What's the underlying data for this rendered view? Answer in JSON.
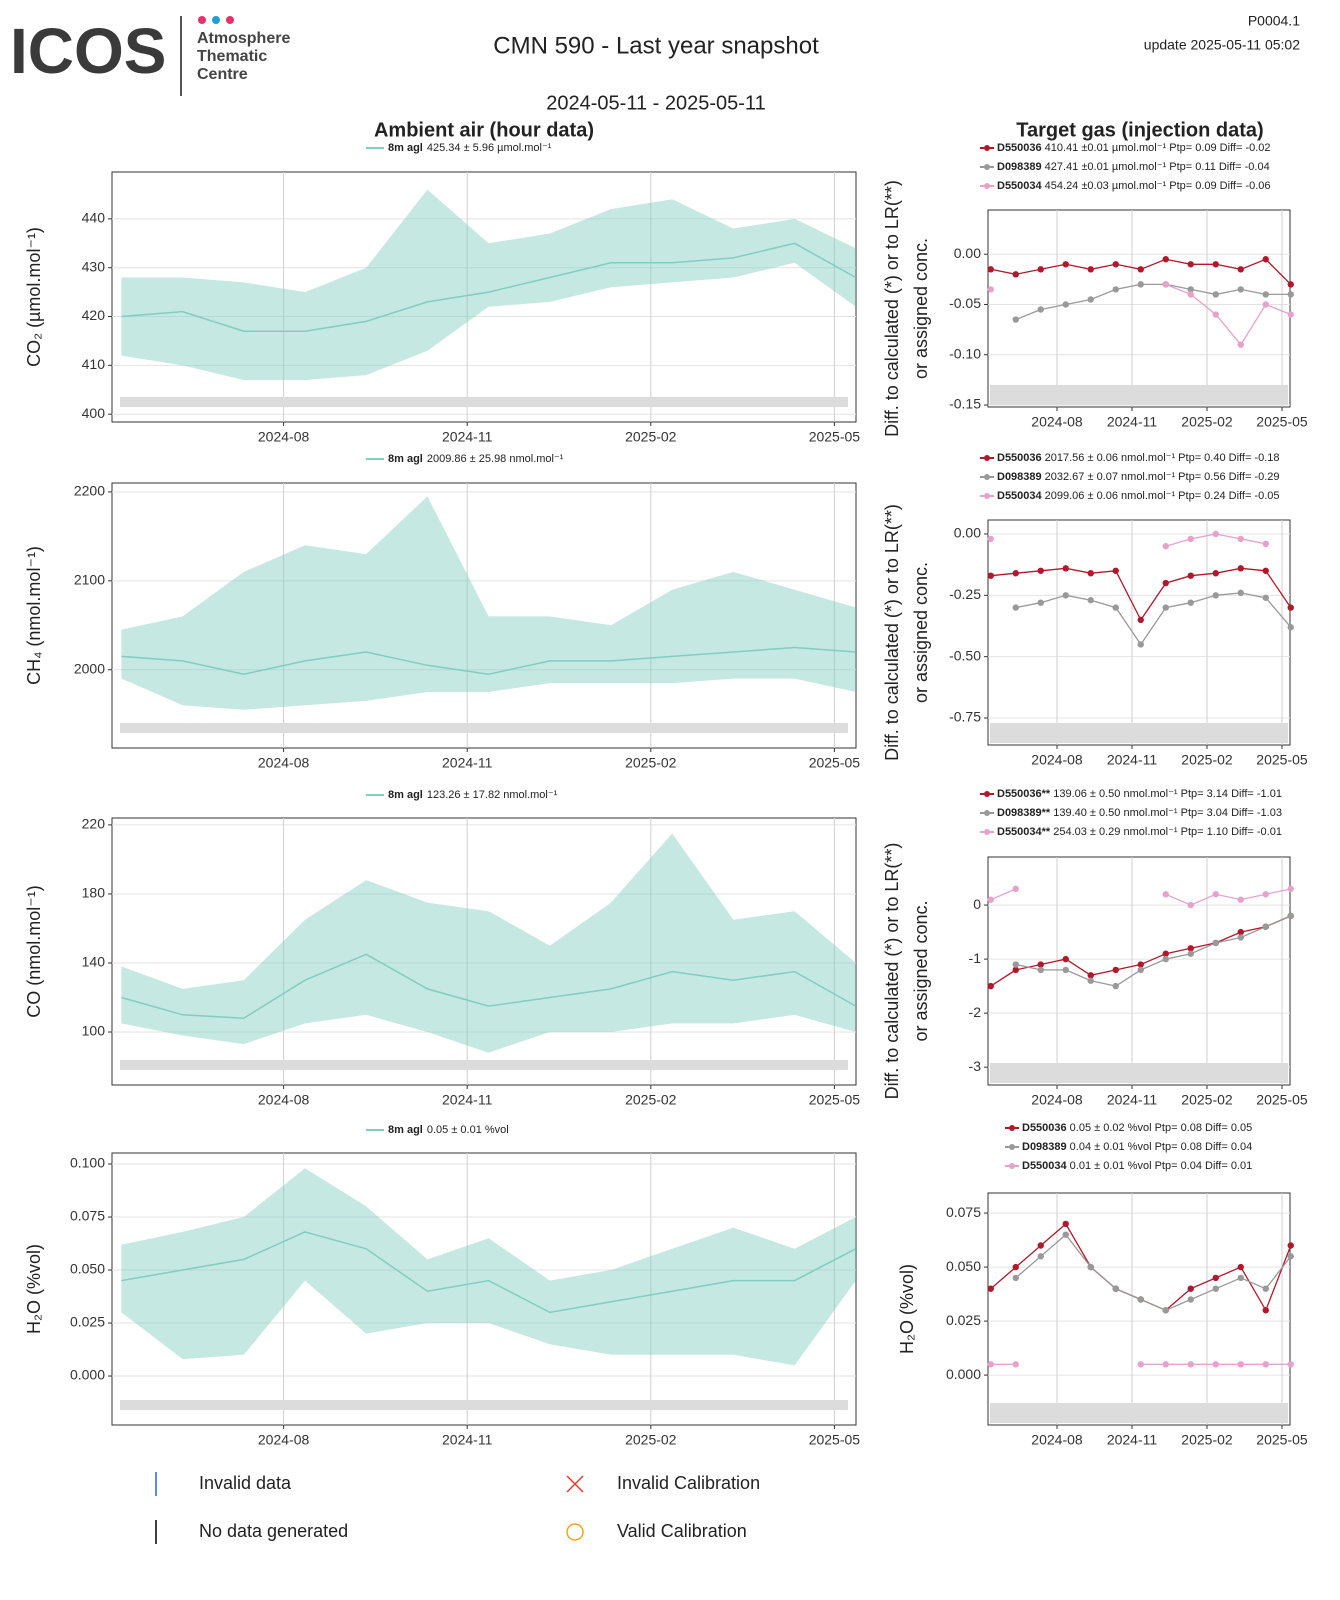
{
  "header": {
    "logo": "ICOS",
    "logo_lines": [
      "Atmosphere",
      "Thematic",
      "Centre"
    ],
    "title": "CMN 590 - Last year snapshot",
    "period": "2024-05-11 - 2025-05-11",
    "code": "P0004.1",
    "update": "update  2025-05-11 05:02",
    "left_heading": "Ambient air (hour data)",
    "right_heading": "Target gas (injection data)"
  },
  "legend_keys": [
    "Invalid data",
    "No data generated",
    "Invalid Calibration",
    "Valid Calibration"
  ],
  "chart_data": [
    {
      "type": "band-line",
      "ylabel": "CO₂ (µmol.mol⁻¹)",
      "x": [
        "2024-05",
        "2024-06",
        "2024-07",
        "2024-08",
        "2024-09",
        "2024-10",
        "2024-11",
        "2024-12",
        "2025-01",
        "2025-02",
        "2025-03",
        "2025-04",
        "2025-05"
      ],
      "xticks": [
        "2024-08",
        "2024-11",
        "2025-02",
        "2025-05"
      ],
      "ylim": [
        398.4,
        449.6
      ],
      "yticks": [
        400,
        410,
        420,
        430,
        440
      ],
      "grid": true,
      "series": [
        {
          "name": "8m agl",
          "stats": "425.34 ± 5.96 µmol.mol⁻¹",
          "color": "#80cdc1",
          "values": [
            420,
            421,
            417,
            417,
            419,
            423,
            425,
            428,
            431,
            431,
            432,
            435,
            428
          ],
          "low": [
            412,
            410,
            407,
            407,
            408,
            413,
            422,
            423,
            426,
            427,
            428,
            431,
            422
          ],
          "high": [
            428,
            428,
            427,
            425,
            430,
            446,
            435,
            437,
            442,
            444,
            438,
            440,
            434
          ]
        }
      ]
    },
    {
      "type": "band-line",
      "ylabel": "CH₄ (nmol.mol⁻¹)",
      "x": [
        "2024-05",
        "2024-06",
        "2024-07",
        "2024-08",
        "2024-09",
        "2024-10",
        "2024-11",
        "2024-12",
        "2025-01",
        "2025-02",
        "2025-03",
        "2025-04",
        "2025-05"
      ],
      "xticks": [
        "2024-08",
        "2024-11",
        "2025-02",
        "2025-05"
      ],
      "ylim": [
        1912,
        2210
      ],
      "yticks": [
        2000,
        2100,
        2200
      ],
      "grid": true,
      "series": [
        {
          "name": "8m agl",
          "stats": "2009.86 ± 25.98 nmol.mol⁻¹",
          "color": "#80cdc1",
          "values": [
            2015,
            2010,
            1995,
            2010,
            2020,
            2005,
            1995,
            2010,
            2010,
            2015,
            2020,
            2025,
            2020
          ],
          "low": [
            1990,
            1960,
            1955,
            1960,
            1965,
            1975,
            1975,
            1985,
            1985,
            1985,
            1990,
            1990,
            1975
          ],
          "high": [
            2045,
            2060,
            2110,
            2140,
            2130,
            2195,
            2060,
            2060,
            2050,
            2090,
            2110,
            2090,
            2070
          ]
        }
      ]
    },
    {
      "type": "band-line",
      "ylabel": "CO (nmol.mol⁻¹)",
      "x": [
        "2024-05",
        "2024-06",
        "2024-07",
        "2024-08",
        "2024-09",
        "2024-10",
        "2024-11",
        "2024-12",
        "2025-01",
        "2025-02",
        "2025-03",
        "2025-04",
        "2025-05"
      ],
      "xticks": [
        "2024-08",
        "2024-11",
        "2025-02",
        "2025-05"
      ],
      "ylim": [
        69.3,
        224
      ],
      "yticks": [
        100,
        140,
        180,
        220
      ],
      "grid": true,
      "series": [
        {
          "name": "8m agl",
          "stats": "123.26 ± 17.82 nmol.mol⁻¹",
          "color": "#80cdc1",
          "values": [
            120,
            110,
            108,
            130,
            145,
            125,
            115,
            120,
            125,
            135,
            130,
            135,
            115
          ],
          "low": [
            105,
            98,
            93,
            105,
            110,
            100,
            88,
            100,
            100,
            105,
            105,
            110,
            100
          ],
          "high": [
            138,
            125,
            130,
            165,
            188,
            175,
            170,
            150,
            175,
            215,
            165,
            170,
            140
          ]
        }
      ]
    },
    {
      "type": "band-line",
      "ylabel": "H₂O (%vol)",
      "x": [
        "2024-05",
        "2024-06",
        "2024-07",
        "2024-08",
        "2024-09",
        "2024-10",
        "2024-11",
        "2024-12",
        "2025-01",
        "2025-02",
        "2025-03",
        "2025-04",
        "2025-05"
      ],
      "xticks": [
        "2024-08",
        "2024-11",
        "2025-02",
        "2025-05"
      ],
      "ylim": [
        -0.0231,
        0.1052
      ],
      "yticks": [
        {
          "value": 0,
          "label": "0.000"
        },
        0.025,
        {
          "value": 0.05,
          "label": "0.050"
        },
        0.075,
        {
          "value": 0.1,
          "label": "0.100"
        }
      ],
      "grid": true,
      "series": [
        {
          "name": "8m agl",
          "stats": "0.05 ± 0.01 %vol",
          "color": "#80cdc1",
          "values": [
            0.045,
            0.05,
            0.055,
            0.068,
            0.06,
            0.04,
            0.045,
            0.03,
            0.035,
            0.04,
            0.045,
            0.045,
            0.06
          ],
          "low": [
            0.03,
            0.008,
            0.01,
            0.045,
            0.02,
            0.025,
            0.025,
            0.015,
            0.01,
            0.01,
            0.01,
            0.005,
            0.045
          ],
          "high": [
            0.062,
            0.068,
            0.075,
            0.098,
            0.08,
            0.055,
            0.065,
            0.045,
            0.05,
            0.06,
            0.07,
            0.06,
            0.075
          ]
        }
      ]
    },
    {
      "type": "point-line",
      "ylabel": [
        "Diff. to calculated (*) or to LR(**)",
        "or assigned conc."
      ],
      "x": [
        "2024-05",
        "2024-06",
        "2024-07",
        "2024-08",
        "2024-09",
        "2024-10",
        "2024-11",
        "2024-12",
        "2025-01",
        "2025-02",
        "2025-03",
        "2025-04",
        "2025-05"
      ],
      "xticks": [
        "2024-08",
        "2024-11",
        "2025-02",
        "2025-05"
      ],
      "ylim": [
        -0.152,
        0.044
      ],
      "yticks": [
        {
          "value": 0,
          "label": "0.00"
        },
        -0.05,
        {
          "value": -0.1,
          "label": "-0.10"
        },
        -0.15
      ],
      "grid": true,
      "series": [
        {
          "name": "D550036",
          "stats": "410.41 ±0.01 µmol.mol⁻¹ Ptp= 0.09 Diff= -0.02",
          "color": "#b2182b",
          "values": [
            -0.015,
            -0.02,
            -0.015,
            -0.01,
            -0.015,
            -0.01,
            -0.015,
            -0.005,
            -0.01,
            -0.01,
            -0.015,
            -0.005,
            -0.03
          ]
        },
        {
          "name": "D098389",
          "stats": "427.41 ±0.01 µmol.mol⁻¹ Ptp= 0.11 Diff= -0.04",
          "color": "#999999",
          "values": [
            null,
            -0.065,
            -0.055,
            -0.05,
            -0.045,
            -0.035,
            -0.03,
            -0.03,
            -0.035,
            -0.04,
            -0.035,
            -0.04,
            -0.04
          ]
        },
        {
          "name": "D550034",
          "stats": "454.24 ±0.03 µmol.mol⁻¹ Ptp= 0.09 Diff= -0.06",
          "color": "#e7a1cd",
          "values": [
            -0.035,
            null,
            null,
            null,
            null,
            null,
            null,
            -0.03,
            -0.04,
            -0.06,
            -0.09,
            -0.05,
            -0.06
          ]
        }
      ]
    },
    {
      "type": "point-line",
      "ylabel": [
        "Diff. to calculated (*) or to LR(**)",
        "or assigned conc."
      ],
      "x": [
        "2024-05",
        "2024-06",
        "2024-07",
        "2024-08",
        "2024-09",
        "2024-10",
        "2024-11",
        "2024-12",
        "2025-01",
        "2025-02",
        "2025-03",
        "2025-04",
        "2025-05"
      ],
      "xticks": [
        "2024-08",
        "2024-11",
        "2025-02",
        "2025-05"
      ],
      "ylim": [
        -0.86,
        0.057
      ],
      "yticks": [
        {
          "value": 0,
          "label": "0.00"
        },
        -0.25,
        {
          "value": -0.5,
          "label": "-0.50"
        },
        -0.75
      ],
      "grid": true,
      "series": [
        {
          "name": "D550036",
          "stats": "2017.56 ± 0.06 nmol.mol⁻¹ Ptp= 0.40 Diff= -0.18",
          "color": "#b2182b",
          "values": [
            -0.17,
            -0.16,
            -0.15,
            -0.14,
            -0.16,
            -0.15,
            -0.35,
            -0.2,
            -0.17,
            -0.16,
            -0.14,
            -0.15,
            -0.3
          ]
        },
        {
          "name": "D098389",
          "stats": "2032.67 ± 0.07 nmol.mol⁻¹ Ptp= 0.56 Diff= -0.29",
          "color": "#999999",
          "values": [
            null,
            -0.3,
            -0.28,
            -0.25,
            -0.27,
            -0.3,
            -0.45,
            -0.3,
            -0.28,
            -0.25,
            -0.24,
            -0.26,
            -0.38
          ]
        },
        {
          "name": "D550034",
          "stats": "2099.06 ± 0.06 nmol.mol⁻¹ Ptp= 0.24 Diff= -0.05",
          "color": "#e7a1cd",
          "values": [
            -0.02,
            null,
            null,
            null,
            null,
            null,
            null,
            -0.05,
            -0.02,
            0,
            -0.02,
            -0.04,
            null
          ]
        }
      ]
    },
    {
      "type": "point-line",
      "ylabel": [
        "Diff. to calculated (*) or to LR(**)",
        "or assigned conc."
      ],
      "x": [
        "2024-05",
        "2024-06",
        "2024-07",
        "2024-08",
        "2024-09",
        "2024-10",
        "2024-11",
        "2024-12",
        "2025-01",
        "2025-02",
        "2025-03",
        "2025-04",
        "2025-05"
      ],
      "xticks": [
        "2024-08",
        "2024-11",
        "2025-02",
        "2025-05"
      ],
      "ylim": [
        -3.33,
        0.89
      ],
      "yticks": [
        0,
        -1,
        -2,
        -3
      ],
      "grid": true,
      "series": [
        {
          "name": "D550036**",
          "stats": "139.06 ± 0.50 nmol.mol⁻¹ Ptp= 3.14 Diff= -1.01",
          "color": "#b2182b",
          "values": [
            -1.5,
            -1.2,
            -1.1,
            -1,
            -1.3,
            -1.2,
            -1.1,
            -0.9,
            -0.8,
            -0.7,
            -0.5,
            -0.4,
            -0.2
          ]
        },
        {
          "name": "D098389**",
          "stats": "139.40 ± 0.50 nmol.mol⁻¹ Ptp= 3.04 Diff= -1.03",
          "color": "#999999",
          "values": [
            null,
            -1.1,
            -1.2,
            -1.2,
            -1.4,
            -1.5,
            -1.2,
            -1,
            -0.9,
            -0.7,
            -0.6,
            -0.4,
            -0.2
          ]
        },
        {
          "name": "D550034**",
          "stats": "254.03 ± 0.29 nmol.mol⁻¹ Ptp= 1.10 Diff= -0.01",
          "color": "#e7a1cd",
          "values": [
            0.1,
            0.3,
            null,
            null,
            null,
            null,
            null,
            0.2,
            0,
            0.2,
            0.1,
            0.2,
            0.3
          ]
        }
      ]
    },
    {
      "type": "point-line",
      "ylabel": [
        "H₂O (%vol)"
      ],
      "x": [
        "2024-05",
        "2024-06",
        "2024-07",
        "2024-08",
        "2024-09",
        "2024-10",
        "2024-11",
        "2024-12",
        "2025-01",
        "2025-02",
        "2025-03",
        "2025-04",
        "2025-05"
      ],
      "xticks": [
        "2024-08",
        "2024-11",
        "2025-02",
        "2025-05"
      ],
      "ylim": [
        -0.0231,
        0.0843
      ],
      "yticks": [
        {
          "value": 0,
          "label": "0.000"
        },
        0.025,
        {
          "value": 0.05,
          "label": "0.050"
        },
        0.075
      ],
      "grid": true,
      "series": [
        {
          "name": "D550036",
          "stats": "0.05 ± 0.02 %vol Ptp= 0.08 Diff= 0.05",
          "color": "#b2182b",
          "values": [
            0.04,
            0.05,
            0.06,
            0.07,
            0.05,
            0.04,
            0.035,
            0.03,
            0.04,
            0.045,
            0.05,
            0.03,
            0.06
          ]
        },
        {
          "name": "D098389",
          "stats": "0.04 ± 0.01 %vol Ptp= 0.08 Diff= 0.04",
          "color": "#999999",
          "values": [
            null,
            0.045,
            0.055,
            0.065,
            0.05,
            0.04,
            0.035,
            0.03,
            0.035,
            0.04,
            0.045,
            0.04,
            0.055
          ]
        },
        {
          "name": "D550034",
          "stats": "0.01 ± 0.01 %vol Ptp= 0.04 Diff= 0.01",
          "color": "#e7a1cd",
          "values": [
            0.005,
            0.005,
            null,
            null,
            null,
            null,
            0.005,
            0.005,
            0.005,
            0.005,
            0.005,
            0.005,
            0.005
          ]
        }
      ]
    }
  ]
}
